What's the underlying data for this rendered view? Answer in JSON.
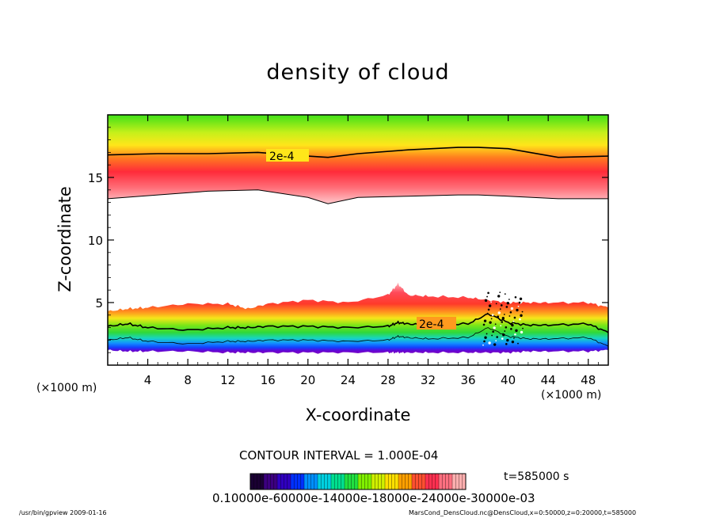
{
  "chart_data": {
    "type": "heatmap",
    "title": "density of cloud",
    "xlabel": "X-coordinate",
    "ylabel": "Z-coordinate",
    "x_unit_label": "(×1000 m)",
    "z_unit_label": "(×1000 m)",
    "xlim": [
      0,
      50
    ],
    "ylim": [
      0,
      20
    ],
    "x_ticks": [
      4,
      8,
      12,
      16,
      20,
      24,
      28,
      32,
      36,
      40,
      44,
      48
    ],
    "y_ticks": [
      5,
      10,
      15
    ],
    "contour_labels": [
      "2e-4",
      "2e-4"
    ],
    "upper_layer": {
      "x": [
        0,
        5,
        10,
        15,
        20,
        22,
        25,
        30,
        35,
        37,
        40,
        45,
        50
      ],
      "base_km": [
        13.3,
        13.6,
        13.9,
        14.0,
        13.4,
        12.9,
        13.4,
        13.5,
        13.6,
        13.6,
        13.5,
        13.3,
        13.3
      ],
      "contour_2e4_km": [
        16.8,
        16.9,
        16.9,
        17.0,
        16.7,
        16.6,
        16.9,
        17.2,
        17.4,
        17.4,
        17.3,
        16.6,
        16.7
      ],
      "top_km": [
        20,
        20,
        20,
        20,
        20,
        20,
        20,
        20,
        20,
        20,
        20,
        20,
        20
      ]
    },
    "lower_layer": {
      "x": [
        0,
        2,
        4,
        8,
        12,
        14,
        16,
        20,
        24,
        28,
        29,
        30,
        32,
        36,
        38,
        40,
        42,
        44,
        48,
        50
      ],
      "top_km": [
        4.3,
        4.5,
        4.6,
        4.9,
        4.9,
        4.5,
        4.9,
        5.2,
        5.0,
        5.6,
        6.5,
        5.6,
        5.5,
        5.4,
        5.2,
        5.0,
        5.0,
        5.0,
        5.0,
        4.6
      ],
      "contour_2e4_km": [
        3.1,
        3.3,
        3.0,
        2.8,
        3.0,
        3.0,
        3.1,
        3.1,
        3.0,
        3.1,
        3.4,
        3.3,
        3.2,
        3.3,
        4.1,
        3.4,
        3.2,
        3.2,
        3.3,
        2.6
      ],
      "base_km": [
        1.2,
        1.1,
        1.1,
        1.1,
        1.0,
        1.0,
        1.0,
        1.0,
        1.0,
        1.0,
        1.0,
        1.0,
        1.0,
        1.0,
        1.0,
        1.0,
        1.1,
        1.1,
        1.1,
        1.2
      ]
    },
    "contour_interval_text": "CONTOUR INTERVAL = 1.000E-04",
    "colorbar": {
      "colors": [
        "#1a0033",
        "#3c0080",
        "#3000c0",
        "#0030ff",
        "#0090ff",
        "#00d0e0",
        "#00e090",
        "#20e040",
        "#80f000",
        "#d0f000",
        "#ffe000",
        "#ffa000",
        "#ff5030",
        "#ff3050",
        "#ff7080",
        "#ffb0b0"
      ],
      "tick_text": "0.10000e-60000e-14000e-18000e-24000e-30000e-03"
    },
    "time_label": "t=585000 s"
  },
  "footer": {
    "left": "/usr/bin/gpview   2009-01-16",
    "right": "MarsCond_DensCloud.nc@DensCloud,x=0:50000,z=0:20000,t=585000"
  },
  "colors": {
    "cloud_core": "#ff2b3a",
    "cloud_edge": "#ffb6bd",
    "cloud_mid": "#ffe61a",
    "cloud_green": "#44e617",
    "cloud_blue": "#1446ff",
    "cloud_violet": "#7a00d0"
  }
}
